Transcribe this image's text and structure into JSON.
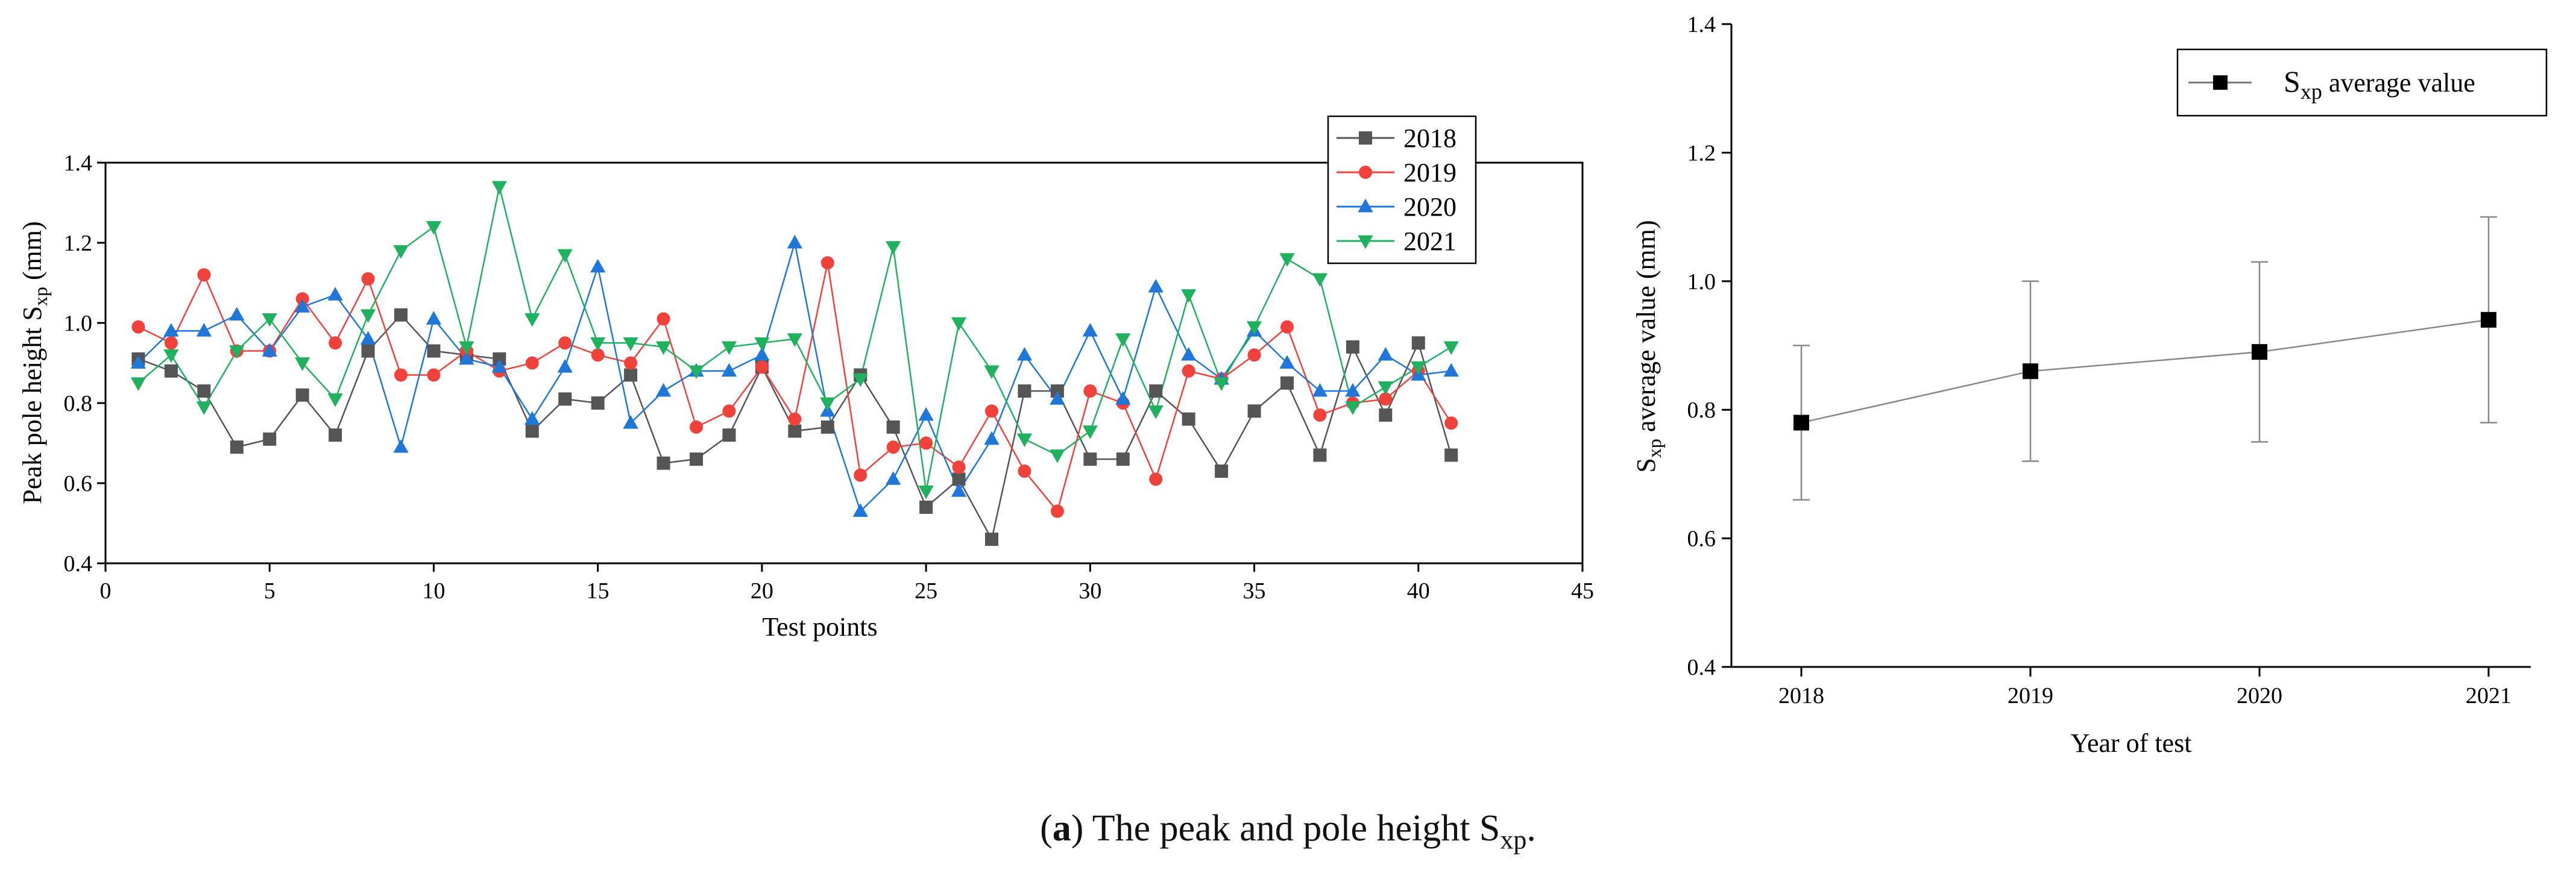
{
  "chart_data": [
    {
      "type": "line",
      "xlabel": "Test points",
      "ylabel_main": "Peak pole height  S",
      "ylabel_sub": "xp",
      "ylabel_unit": "  (mm)",
      "xlim": [
        0,
        45
      ],
      "ylim": [
        0.4,
        1.4
      ],
      "xticks": [
        0,
        5,
        10,
        15,
        20,
        25,
        30,
        35,
        40,
        45
      ],
      "yticks": [
        0.4,
        0.6,
        0.8,
        1.0,
        1.2,
        1.4
      ],
      "x": [
        1,
        2,
        3,
        4,
        5,
        6,
        7,
        8,
        9,
        10,
        11,
        12,
        13,
        14,
        15,
        16,
        17,
        18,
        19,
        20,
        21,
        22,
        23,
        24,
        25,
        26,
        27,
        28,
        29,
        30,
        31,
        32,
        33,
        34,
        35,
        36,
        37,
        38,
        39,
        40,
        41
      ],
      "legend_position": "top-right",
      "series": [
        {
          "name": "2018",
          "color": "#555555",
          "marker": "square",
          "values": [
            0.91,
            0.88,
            0.83,
            0.69,
            0.71,
            0.82,
            0.72,
            0.93,
            1.02,
            0.93,
            0.92,
            0.91,
            0.73,
            0.81,
            0.8,
            0.87,
            0.65,
            0.66,
            0.72,
            0.89,
            0.73,
            0.74,
            0.87,
            0.74,
            0.54,
            0.61,
            0.46,
            0.83,
            0.83,
            0.66,
            0.66,
            0.83,
            0.76,
            0.63,
            0.78,
            0.85,
            0.67,
            0.94,
            0.77,
            0.95,
            0.67
          ]
        },
        {
          "name": "2019",
          "color": "#f0413b",
          "marker": "circle",
          "values": [
            0.99,
            0.95,
            1.12,
            0.93,
            0.93,
            1.06,
            0.95,
            1.11,
            0.87,
            0.87,
            0.93,
            0.88,
            0.9,
            0.95,
            0.92,
            0.9,
            1.01,
            0.74,
            0.78,
            0.89,
            0.76,
            1.15,
            0.62,
            0.69,
            0.7,
            0.64,
            0.78,
            0.63,
            0.53,
            0.83,
            0.8,
            0.61,
            0.88,
            0.86,
            0.92,
            0.99,
            0.77,
            0.8,
            0.81,
            0.88,
            0.75
          ]
        },
        {
          "name": "2020",
          "color": "#1f77d9",
          "marker": "triangle-up",
          "values": [
            0.9,
            0.98,
            0.98,
            1.02,
            0.93,
            1.04,
            1.07,
            0.96,
            0.69,
            1.01,
            0.91,
            0.89,
            0.76,
            0.89,
            1.14,
            0.75,
            0.83,
            0.88,
            0.88,
            0.92,
            1.2,
            0.78,
            0.53,
            0.61,
            0.77,
            0.58,
            0.71,
            0.92,
            0.81,
            0.98,
            0.81,
            1.09,
            0.92,
            0.86,
            0.98,
            0.9,
            0.83,
            0.83,
            0.92,
            0.87,
            0.88
          ]
        },
        {
          "name": "2021",
          "color": "#20b15e",
          "marker": "triangle-down",
          "values": [
            0.85,
            0.92,
            0.79,
            0.93,
            1.01,
            0.9,
            0.81,
            1.02,
            1.18,
            1.24,
            0.94,
            1.34,
            1.01,
            1.17,
            0.95,
            0.95,
            0.94,
            0.88,
            0.94,
            0.95,
            0.96,
            0.8,
            0.86,
            1.19,
            0.58,
            1.0,
            0.88,
            0.71,
            0.67,
            0.73,
            0.96,
            0.78,
            1.07,
            0.85,
            0.99,
            1.16,
            1.11,
            0.79,
            0.84,
            0.89,
            0.94
          ]
        }
      ]
    },
    {
      "type": "line",
      "xlabel": "Year of test",
      "ylabel_main": "S",
      "ylabel_sub": "xp",
      "ylabel_unit": "  average value  (mm)",
      "ylim": [
        0.4,
        1.4
      ],
      "yticks": [
        0.4,
        0.6,
        0.8,
        1.0,
        1.2,
        1.4
      ],
      "categories": [
        "2018",
        "2019",
        "2020",
        "2021"
      ],
      "legend_position": "top-right",
      "series": [
        {
          "name_main": "S",
          "name_sub": "xp",
          "name_rest": "  average value",
          "color": "#000000",
          "marker": "square",
          "values": [
            0.78,
            0.86,
            0.89,
            0.94
          ],
          "error": [
            0.12,
            0.14,
            0.14,
            0.16
          ]
        }
      ]
    }
  ],
  "caption": {
    "label": "a",
    "text_before": "The peak and pole height S",
    "text_sub": "xp",
    "text_after": "."
  }
}
